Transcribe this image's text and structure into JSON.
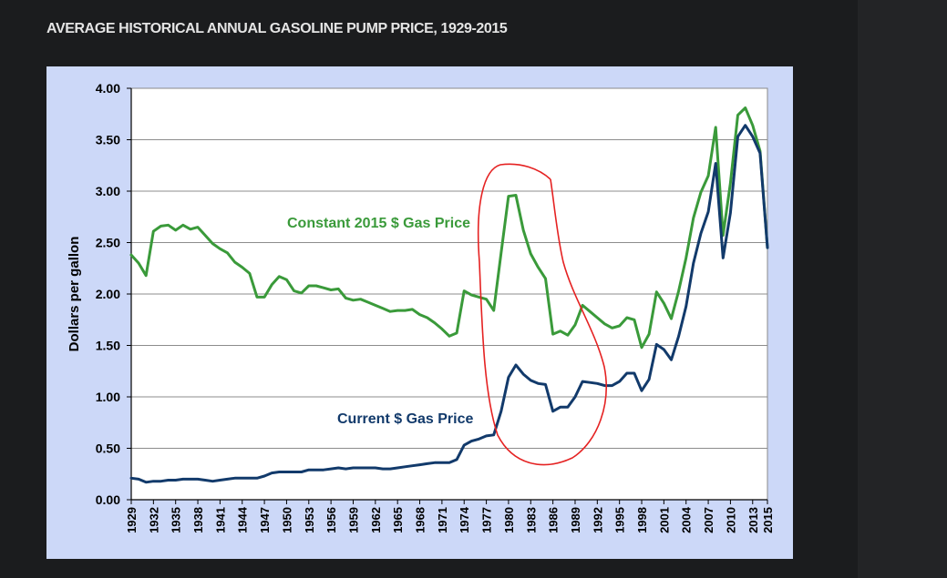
{
  "page": {
    "title": "AVERAGE HISTORICAL ANNUAL GASOLINE PUMP PRICE, 1929-2015"
  },
  "colors": {
    "background": "#1b1c1e",
    "chart_background": "#ccd8f8",
    "plot_background": "#ffffff",
    "constant_series": "#3a9a3a",
    "current_series": "#123a6b",
    "circle_annotation": "#e52222"
  },
  "chart_data": {
    "type": "line",
    "title": "",
    "xlabel": "",
    "ylabel": "Dollars per gallon",
    "xlim": [
      1929,
      2015
    ],
    "ylim": [
      0,
      4
    ],
    "y_ticks": [
      "0.00",
      "0.50",
      "1.00",
      "1.50",
      "2.00",
      "2.50",
      "3.00",
      "3.50",
      "4.00"
    ],
    "x_ticks": [
      "1929",
      "1932",
      "1935",
      "1938",
      "1941",
      "1944",
      "1947",
      "1950",
      "1953",
      "1956",
      "1959",
      "1962",
      "1965",
      "1968",
      "1971",
      "1974",
      "1977",
      "1980",
      "1983",
      "1986",
      "1989",
      "1992",
      "1995",
      "1998",
      "2001",
      "2004",
      "2007",
      "2010",
      "2013",
      "2015"
    ],
    "grid": "horizontal",
    "x": [
      1929,
      1930,
      1931,
      1932,
      1933,
      1934,
      1935,
      1936,
      1937,
      1938,
      1939,
      1940,
      1941,
      1942,
      1943,
      1944,
      1945,
      1946,
      1947,
      1948,
      1949,
      1950,
      1951,
      1952,
      1953,
      1954,
      1955,
      1956,
      1957,
      1958,
      1959,
      1960,
      1961,
      1962,
      1963,
      1964,
      1965,
      1966,
      1967,
      1968,
      1969,
      1970,
      1971,
      1972,
      1973,
      1974,
      1975,
      1976,
      1977,
      1978,
      1979,
      1980,
      1981,
      1982,
      1983,
      1984,
      1985,
      1986,
      1987,
      1988,
      1989,
      1990,
      1991,
      1992,
      1993,
      1994,
      1995,
      1996,
      1997,
      1998,
      1999,
      2000,
      2001,
      2002,
      2003,
      2004,
      2005,
      2006,
      2007,
      2008,
      2009,
      2010,
      2011,
      2012,
      2013,
      2014,
      2015
    ],
    "series": [
      {
        "name": "Constant 2015 $ Gas Price",
        "values": [
          2.38,
          2.3,
          2.18,
          2.61,
          2.66,
          2.67,
          2.62,
          2.67,
          2.63,
          2.65,
          2.57,
          2.49,
          2.44,
          2.4,
          2.31,
          2.26,
          2.2,
          1.97,
          1.97,
          2.09,
          2.17,
          2.14,
          2.03,
          2.01,
          2.08,
          2.08,
          2.06,
          2.04,
          2.05,
          1.96,
          1.94,
          1.95,
          1.92,
          1.89,
          1.86,
          1.83,
          1.84,
          1.84,
          1.85,
          1.8,
          1.77,
          1.72,
          1.66,
          1.59,
          1.62,
          2.03,
          1.99,
          1.97,
          1.95,
          1.84,
          2.4,
          2.95,
          2.96,
          2.62,
          2.39,
          2.26,
          2.15,
          1.61,
          1.64,
          1.6,
          1.7,
          1.89,
          1.83,
          1.77,
          1.71,
          1.67,
          1.69,
          1.77,
          1.75,
          1.48,
          1.61,
          2.02,
          1.91,
          1.76,
          2.03,
          2.35,
          2.74,
          2.99,
          3.15,
          3.62,
          2.57,
          3.08,
          3.74,
          3.81,
          3.64,
          3.39,
          2.45
        ]
      },
      {
        "name": "Current $ Gas Price",
        "values": [
          0.21,
          0.2,
          0.17,
          0.18,
          0.18,
          0.19,
          0.19,
          0.2,
          0.2,
          0.2,
          0.19,
          0.18,
          0.19,
          0.2,
          0.21,
          0.21,
          0.21,
          0.21,
          0.23,
          0.26,
          0.27,
          0.27,
          0.27,
          0.27,
          0.29,
          0.29,
          0.29,
          0.3,
          0.31,
          0.3,
          0.31,
          0.31,
          0.31,
          0.31,
          0.3,
          0.3,
          0.31,
          0.32,
          0.33,
          0.34,
          0.35,
          0.36,
          0.36,
          0.36,
          0.39,
          0.53,
          0.57,
          0.59,
          0.62,
          0.63,
          0.86,
          1.19,
          1.31,
          1.22,
          1.16,
          1.13,
          1.12,
          0.86,
          0.9,
          0.9,
          1.0,
          1.15,
          1.14,
          1.13,
          1.11,
          1.11,
          1.15,
          1.23,
          1.23,
          1.06,
          1.17,
          1.51,
          1.46,
          1.36,
          1.59,
          1.88,
          2.3,
          2.59,
          2.8,
          3.27,
          2.35,
          2.79,
          3.53,
          3.64,
          3.53,
          3.37,
          2.45
        ]
      }
    ],
    "annotations": [
      {
        "text": "Constant 2015 $ Gas Price",
        "series": 0
      },
      {
        "text": "Current $ Gas Price",
        "series": 1
      }
    ],
    "hand_drawn_circle": {
      "color": "#e52222",
      "x_range": [
        1977,
        1993
      ],
      "y_range": [
        0.3,
        3.25
      ]
    }
  }
}
